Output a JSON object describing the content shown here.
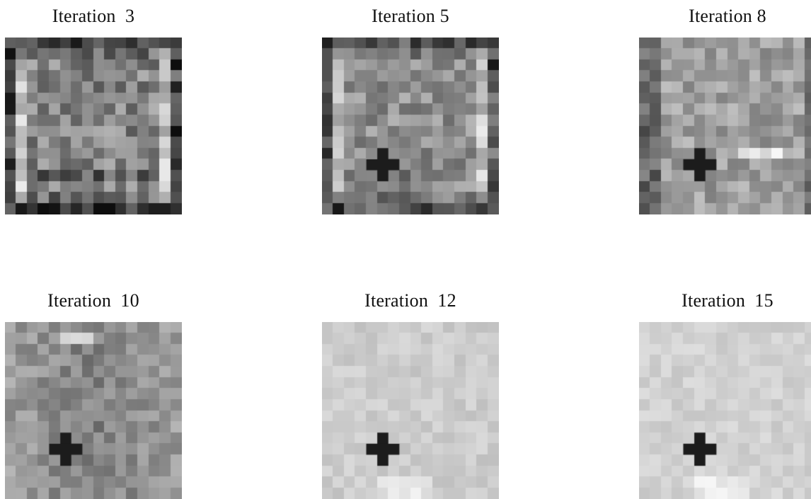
{
  "panels": [
    {
      "title": "Iteration  3",
      "style": "frame",
      "cross": false,
      "bright": 0.52,
      "contrast": 1.0
    },
    {
      "title": "Iteration 5",
      "style": "frame",
      "cross": true,
      "bright": 0.56,
      "contrast": 0.85
    },
    {
      "title": "Iteration 8",
      "style": "dark-edges",
      "cross": true,
      "bright": 0.62,
      "contrast": 0.75
    },
    {
      "title": "Iteration  10",
      "style": "smooth",
      "cross": true,
      "bright": 0.62,
      "contrast": 0.6
    },
    {
      "title": "Iteration  12",
      "style": "light",
      "cross": true,
      "bright": 0.8,
      "contrast": 0.3
    },
    {
      "title": "Iteration  15",
      "style": "light",
      "cross": true,
      "bright": 0.82,
      "contrast": 0.28
    }
  ]
}
